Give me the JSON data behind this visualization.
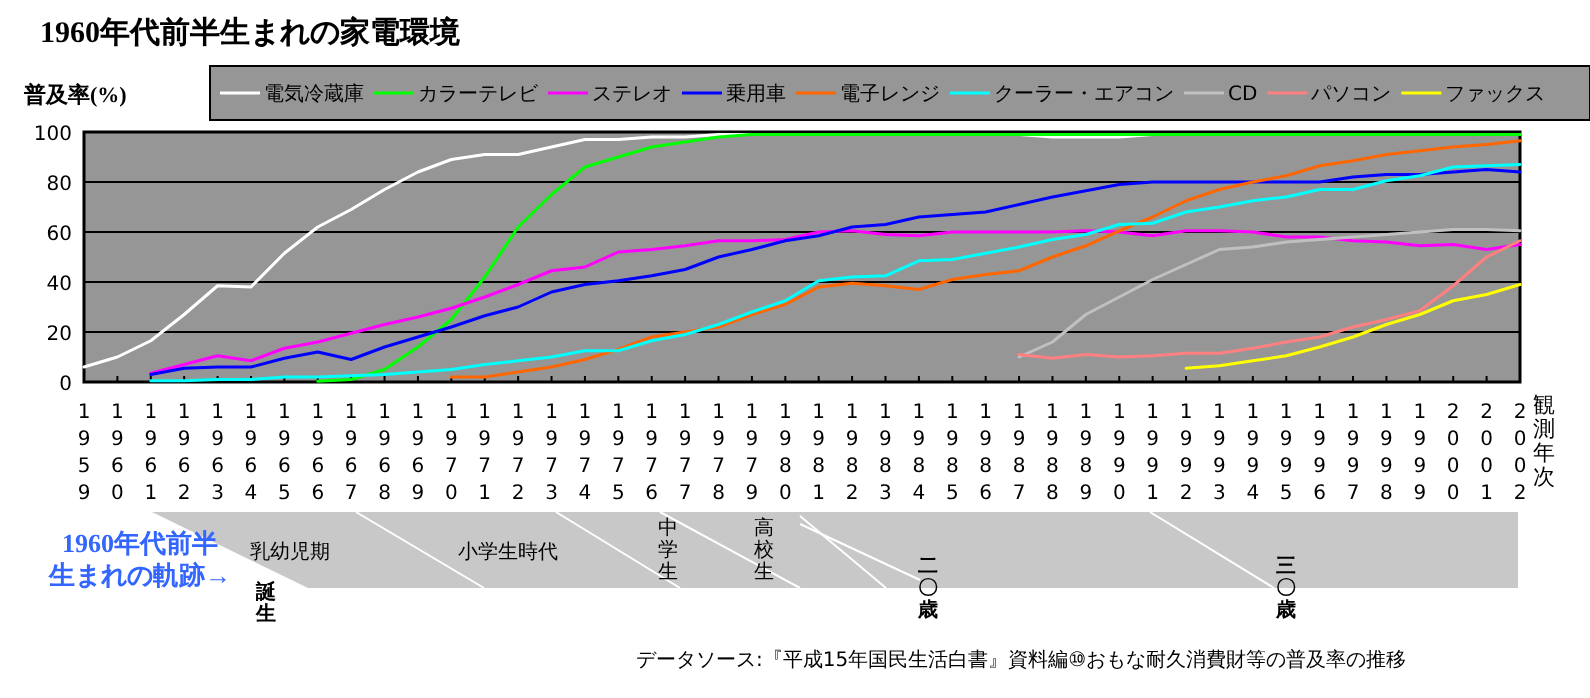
{
  "chart_data": {
    "type": "line",
    "title": "1960年代前半生まれの家電環境",
    "ylabel": "普及率(%)",
    "xlabel": "観測年次",
    "x": [
      1959,
      1960,
      1961,
      1962,
      1963,
      1964,
      1965,
      1966,
      1967,
      1968,
      1969,
      1970,
      1971,
      1972,
      1973,
      1974,
      1975,
      1976,
      1977,
      1978,
      1979,
      1980,
      1981,
      1982,
      1983,
      1984,
      1985,
      1986,
      1987,
      1988,
      1989,
      1990,
      1991,
      1992,
      1993,
      1994,
      1995,
      1996,
      1997,
      1998,
      1999,
      2000,
      2001,
      2002
    ],
    "xlim": [
      1959,
      2002
    ],
    "xticks": [
      1959,
      1960,
      1961,
      1962,
      1963,
      1964,
      1965,
      1966,
      1967,
      1968,
      1969,
      1970,
      1971,
      1972,
      1973,
      1974,
      1975,
      1976,
      1977,
      1978,
      1979,
      1980,
      1981,
      1982,
      1983,
      1984,
      1985,
      1986,
      1987,
      1988,
      1989,
      1990,
      1991,
      1992,
      1993,
      1994,
      1995,
      1996,
      1997,
      1998,
      1999,
      2000,
      2001,
      2002
    ],
    "ylim": [
      0,
      100
    ],
    "yticks": [
      0,
      20,
      40,
      60,
      80,
      100
    ],
    "grid": "y",
    "legend": "top",
    "marker": "none",
    "line_style": "solid",
    "series": [
      {
        "name": "電気冷蔵庫",
        "color": "#ffffff",
        "values": [
          6,
          10,
          16.5,
          27,
          38.5,
          38,
          51.5,
          62,
          69,
          77,
          84,
          89,
          91,
          91,
          94,
          97,
          97,
          98,
          98,
          99,
          99,
          99,
          99,
          99,
          99,
          99,
          99,
          99,
          99,
          98,
          98,
          98,
          99,
          99,
          99,
          99,
          99,
          99,
          99,
          99,
          99,
          99,
          99,
          99
        ]
      },
      {
        "name": "カラーテレビ",
        "color": "#00ff00",
        "values": [
          null,
          null,
          null,
          null,
          null,
          null,
          null,
          0.3,
          1,
          5,
          14,
          25,
          42,
          62,
          75,
          86,
          90,
          94,
          96,
          98,
          99,
          99,
          99,
          99,
          99,
          99,
          99,
          99,
          99,
          99,
          99,
          99,
          99,
          99,
          99,
          99,
          99,
          99,
          99,
          99,
          99,
          99,
          99,
          99
        ]
      },
      {
        "name": "ステレオ",
        "color": "#ff00ff",
        "values": [
          null,
          null,
          3.5,
          7,
          10.5,
          8.5,
          13.5,
          16,
          19.5,
          23,
          26,
          29.5,
          34,
          39,
          44.5,
          46,
          52,
          53,
          54.5,
          56.5,
          56.5,
          57,
          60,
          60.5,
          59,
          58.5,
          60,
          60,
          60,
          60,
          60.5,
          60,
          58.5,
          60.5,
          60.5,
          60,
          58,
          58,
          56.5,
          56,
          54.5,
          55,
          53,
          55
        ]
      },
      {
        "name": "乗用車",
        "color": "#0000ff",
        "values": [
          null,
          null,
          3,
          5.5,
          6,
          6,
          9.5,
          12,
          9,
          14,
          18,
          22,
          26.5,
          30,
          36,
          39,
          40.5,
          42.5,
          45,
          50,
          53,
          56.5,
          58.5,
          62,
          63,
          66,
          67,
          68,
          71,
          74,
          76.5,
          79,
          80,
          80,
          80,
          80,
          80,
          80,
          82,
          83,
          83,
          84,
          85,
          84
        ]
      },
      {
        "name": "電子レンジ",
        "color": "#ff6600",
        "values": [
          null,
          null,
          null,
          null,
          null,
          null,
          null,
          null,
          null,
          null,
          null,
          2,
          2,
          4,
          6,
          9,
          13,
          18,
          20,
          22,
          27,
          31,
          38,
          39.5,
          38.5,
          37,
          41,
          43,
          44.5,
          50,
          54.5,
          60.5,
          66,
          72.5,
          77,
          80,
          82.5,
          86.5,
          88.5,
          91,
          92.5,
          94,
          95,
          96.5
        ]
      },
      {
        "name": "クーラー・エアコン",
        "color": "#00ffff",
        "values": [
          null,
          null,
          0.5,
          0.5,
          1,
          1,
          2,
          2,
          2.5,
          3,
          4,
          5,
          7,
          8.5,
          10,
          12.5,
          12.5,
          16.5,
          19,
          23,
          28,
          32.5,
          40.5,
          42,
          42.5,
          48.5,
          49,
          51.5,
          54,
          57,
          59,
          63,
          63.5,
          68,
          70,
          72.5,
          74,
          77,
          77,
          80.5,
          82.5,
          86,
          86.5,
          87
        ]
      },
      {
        "name": "CD",
        "color": "#c0c0c0",
        "values": [
          null,
          null,
          null,
          null,
          null,
          null,
          null,
          null,
          null,
          null,
          null,
          null,
          null,
          null,
          null,
          null,
          null,
          null,
          null,
          null,
          null,
          null,
          null,
          null,
          null,
          null,
          null,
          null,
          10,
          16,
          27,
          34,
          41,
          47,
          53,
          54,
          56,
          57,
          58,
          59,
          60,
          61,
          61,
          60.5
        ]
      },
      {
        "name": "パソコン",
        "color": "#ff8080",
        "values": [
          null,
          null,
          null,
          null,
          null,
          null,
          null,
          null,
          null,
          null,
          null,
          null,
          null,
          null,
          null,
          null,
          null,
          null,
          null,
          null,
          null,
          null,
          null,
          null,
          null,
          null,
          null,
          null,
          11,
          9.5,
          11,
          10,
          10.5,
          11.5,
          11.5,
          13.5,
          16,
          18,
          22,
          25,
          28.5,
          38.5,
          50,
          56.5
        ]
      },
      {
        "name": "ファックス",
        "color": "#ffff00",
        "values": [
          null,
          null,
          null,
          null,
          null,
          null,
          null,
          null,
          null,
          null,
          null,
          null,
          null,
          null,
          null,
          null,
          null,
          null,
          null,
          null,
          null,
          null,
          null,
          null,
          null,
          null,
          null,
          null,
          null,
          null,
          null,
          null,
          null,
          5.5,
          6.5,
          8.5,
          10.5,
          14,
          18,
          23,
          27,
          32.5,
          35,
          39
        ]
      }
    ],
    "annotations": [
      "1960年代前半",
      "生まれの軌跡→",
      "誕生",
      "乳幼児期",
      "小学生時代",
      "中学生",
      "高校生",
      "二〇歳",
      "三〇歳",
      "データソース:『平成15年国民生活白書』資料編⑩おもな耐久消費財等の普及率の推移"
    ]
  }
}
